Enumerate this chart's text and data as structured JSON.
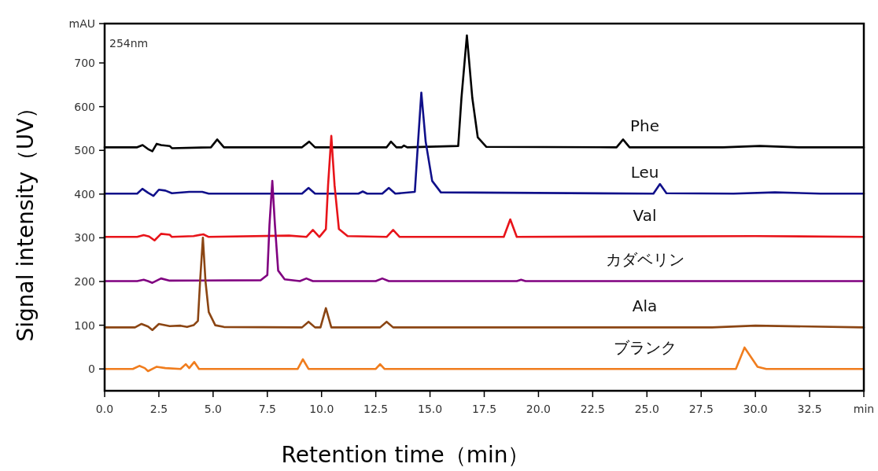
{
  "chart_data": {
    "type": "line",
    "xlabel": "Retention time（min）",
    "ylabel": "Signal intensity（UV）",
    "annotations": [
      "254nm"
    ],
    "xlim": [
      0,
      35
    ],
    "ylim": [
      -50,
      790
    ],
    "xticks": [
      {
        "value": 0,
        "label": "0.0"
      },
      2.5,
      {
        "value": 5,
        "label": "5.0"
      },
      7.5,
      {
        "value": 10,
        "label": "10.0"
      },
      12.5,
      {
        "value": 15,
        "label": "15.0"
      },
      17.5,
      {
        "value": 20,
        "label": "20.0"
      },
      22.5,
      {
        "value": 25,
        "label": "25.0"
      },
      27.5,
      {
        "value": 30,
        "label": "30.0"
      },
      32.5,
      {
        "value": 35,
        "label": "min"
      }
    ],
    "yticks": [
      0,
      100,
      200,
      300,
      400,
      500,
      600,
      700,
      {
        "value": 790,
        "label": "mAU"
      }
    ],
    "grid": false,
    "legend": false,
    "marker": "none",
    "line_style": "solid",
    "series": [
      {
        "name": "Phe",
        "color": "#000000",
        "x": [
          0,
          1.5,
          1.75,
          2.0,
          2.2,
          2.4,
          2.6,
          3.0,
          3.1,
          4.9,
          5.19,
          5.5,
          9.1,
          9.43,
          9.7,
          13.0,
          13.2,
          13.45,
          13.7,
          13.8,
          13.95,
          16.3,
          16.45,
          16.7,
          16.95,
          17.2,
          17.6,
          23.6,
          23.9,
          24.2,
          28.5,
          30.2,
          32,
          35
        ],
        "values": [
          507,
          507,
          512,
          503,
          498,
          515,
          512,
          510,
          505,
          507,
          525,
          507,
          507,
          520,
          507,
          507,
          520,
          507,
          507,
          511,
          507,
          510,
          620,
          763,
          620,
          530,
          508,
          507,
          525,
          507,
          507,
          510,
          507,
          507
        ]
      },
      {
        "name": "Leu",
        "color": "#10108a",
        "x": [
          0,
          1.5,
          1.74,
          2.0,
          2.25,
          2.5,
          2.8,
          3.1,
          3.9,
          4.5,
          4.8,
          9.1,
          9.4,
          9.7,
          11.7,
          11.9,
          12.1,
          12.8,
          13.1,
          13.4,
          14.3,
          14.45,
          14.6,
          14.8,
          15.1,
          15.5,
          25.3,
          25.6,
          25.9,
          29,
          30.9,
          33,
          35
        ],
        "values": [
          401,
          401,
          412,
          403,
          396,
          410,
          408,
          402,
          405,
          405,
          401,
          401,
          414,
          401,
          401,
          406,
          401,
          401,
          414,
          401,
          405,
          520,
          632,
          520,
          430,
          404,
          401,
          423,
          402,
          401,
          404,
          401,
          401
        ]
      },
      {
        "name": "Val",
        "color": "#e8141a",
        "x": [
          0,
          1.5,
          1.8,
          2.05,
          2.3,
          2.6,
          3.0,
          3.1,
          4.1,
          4.55,
          4.8,
          8.5,
          9.3,
          9.6,
          9.9,
          10.2,
          10.3,
          10.45,
          10.6,
          10.8,
          11.2,
          13.0,
          13.3,
          13.6,
          18.4,
          18.7,
          19.0,
          30,
          35
        ],
        "values": [
          302,
          302,
          306,
          303,
          294,
          309,
          307,
          302,
          304,
          308,
          302,
          305,
          302,
          318,
          302,
          320,
          420,
          533,
          420,
          320,
          304,
          302,
          318,
          302,
          302,
          342,
          302,
          304,
          302
        ]
      },
      {
        "name": "カダベリン",
        "color": "#800080",
        "x": [
          0,
          1.5,
          1.8,
          2.0,
          2.2,
          2.6,
          3.0,
          7.2,
          7.5,
          7.6,
          7.73,
          7.85,
          8.0,
          8.3,
          9.0,
          9.3,
          9.6,
          12.5,
          12.8,
          13.1,
          19.0,
          19.2,
          19.4,
          35
        ],
        "values": [
          201,
          201,
          204,
          201,
          197,
          207,
          202,
          203,
          215,
          330,
          430,
          330,
          225,
          205,
          201,
          207,
          201,
          201,
          207,
          201,
          201,
          204,
          201,
          201
        ]
      },
      {
        "name": "Ala",
        "color": "#8b4513",
        "x": [
          0,
          1.4,
          1.7,
          2.0,
          2.2,
          2.5,
          3.0,
          3.5,
          3.8,
          4.1,
          4.3,
          4.4,
          4.53,
          4.65,
          4.8,
          5.1,
          5.5,
          9.1,
          9.4,
          9.7,
          9.95,
          10.2,
          10.45,
          12.7,
          13.0,
          13.3,
          28,
          30,
          35
        ],
        "values": [
          95,
          95,
          103,
          97,
          89,
          103,
          98,
          99,
          96,
          100,
          110,
          200,
          300,
          200,
          130,
          100,
          96,
          95,
          108,
          95,
          95,
          139,
          95,
          95,
          108,
          95,
          95,
          99,
          95
        ]
      },
      {
        "name": "ブランク",
        "color": "#f07d1e",
        "x": [
          0,
          1.3,
          1.6,
          1.85,
          2.0,
          2.4,
          2.8,
          3.5,
          3.74,
          3.9,
          4.13,
          4.35,
          8.9,
          9.14,
          9.4,
          12.5,
          12.7,
          12.9,
          29.1,
          29.5,
          30.1,
          30.5,
          35
        ],
        "values": [
          0,
          0,
          7,
          2,
          -5,
          5,
          2,
          0,
          11,
          2,
          16,
          0,
          0,
          22,
          0,
          0,
          11,
          0,
          0,
          49,
          5,
          0,
          0
        ]
      }
    ]
  }
}
